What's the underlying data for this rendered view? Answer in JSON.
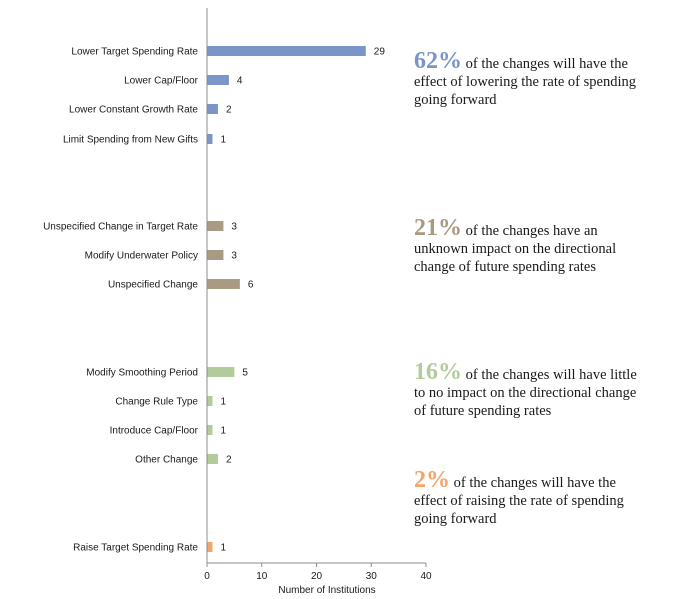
{
  "chart_data": {
    "type": "bar",
    "orientation": "horizontal",
    "xlabel": "Number of Institutions",
    "xlim": [
      0,
      40
    ],
    "xticks": [
      0,
      10,
      20,
      30,
      40
    ],
    "grid": false,
    "categories": [
      "Lower Target Spending Rate",
      "Lower Cap/Floor",
      "Lower Constant Growth Rate",
      "Limit Spending from New Gifts",
      "Unspecified Change in Target Rate",
      "Modify Underwater Policy",
      "Unspecified Change",
      "Modify Smoothing Period",
      "Change Rule Type",
      "Introduce Cap/Floor",
      "Other Change",
      "Raise Target Spending Rate"
    ],
    "values": [
      29,
      4,
      2,
      1,
      3,
      3,
      6,
      5,
      1,
      1,
      2,
      1
    ],
    "groups": [
      "lower",
      "lower",
      "lower",
      "lower",
      "unknown",
      "unknown",
      "unknown",
      "little",
      "little",
      "little",
      "little",
      "raise"
    ],
    "colors": {
      "lower": "#7b95c9",
      "unknown": "#a89a83",
      "little": "#b2cb9a",
      "raise": "#f3a56a"
    }
  },
  "annotations": [
    {
      "group": "lower",
      "pct": "62%",
      "text": " of the changes will have the effect of lowering the rate of spending going forward"
    },
    {
      "group": "unknown",
      "pct": "21%",
      "text": " of the changes have an unknown impact on the directional change of future spending rates"
    },
    {
      "group": "little",
      "pct": "16%",
      "text": " of the changes will have little to no impact on the directional change of future spending rates"
    },
    {
      "group": "raise",
      "pct": "2%",
      "text": " of the changes will have the effect of raising the rate of spending going forward"
    }
  ]
}
